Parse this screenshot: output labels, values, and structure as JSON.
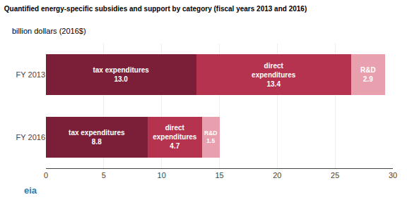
{
  "chart_data": {
    "type": "bar",
    "orientation": "horizontal",
    "stacked": true,
    "title": "Quantified energy-specific subsidies and support by category (fiscal years 2013 and 2016)",
    "subtitle": "billion dollars (2016$)",
    "categories": [
      "FY 2013",
      "FY 2016"
    ],
    "series": [
      {
        "name": "tax expenditures",
        "color": "#7B1F38",
        "values": [
          13.0,
          8.8
        ],
        "value_labels": [
          "13.0",
          "8.8"
        ]
      },
      {
        "name": "direct\nexpenditures",
        "color": "#B5334E",
        "values": [
          13.4,
          4.7
        ],
        "value_labels": [
          "13.4",
          "4.7"
        ]
      },
      {
        "name": "R&D",
        "color": "#E8A0AE",
        "values": [
          2.9,
          1.5
        ],
        "value_labels": [
          "2.9",
          "1.5"
        ]
      }
    ],
    "xlim": [
      0,
      30
    ],
    "xticks": [
      0,
      5,
      10,
      15,
      20,
      25,
      30
    ],
    "grid": true,
    "data_labels": true,
    "annotations": [
      {
        "text": "eia",
        "color": "#2a7db0"
      }
    ]
  }
}
